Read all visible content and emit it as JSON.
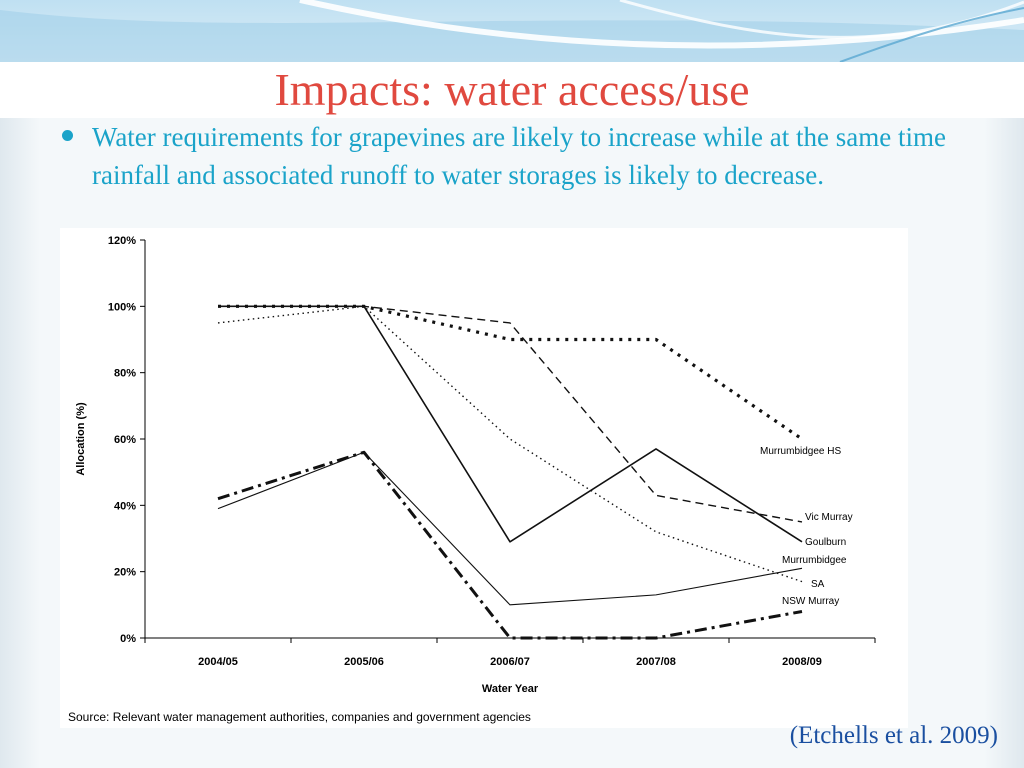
{
  "slide": {
    "title": "Impacts: water access/use",
    "bullet": "Water requirements for grapevines are likely to increase while at the same time rainfall and associated runoff to water storages is likely to decrease.",
    "citation": "(Etchells et al. 2009)",
    "colors": {
      "title": "#e0493f",
      "bullet": "#1aa3c9",
      "citation": "#1a4fa0"
    }
  },
  "chart_data": {
    "type": "line",
    "xlabel": "Water Year",
    "ylabel": "Allocation (%)",
    "categories": [
      "2004/05",
      "2005/06",
      "2006/07",
      "2007/08",
      "2008/09"
    ],
    "y_ticks": [
      "0%",
      "20%",
      "40%",
      "60%",
      "80%",
      "100%",
      "120%"
    ],
    "ylim": [
      0,
      120
    ],
    "source": "Source: Relevant water management authorities, companies and government agencies",
    "series": [
      {
        "name": "Murrumbidgee HS",
        "style": "dotted-bold",
        "values": [
          100,
          100,
          90,
          90,
          60
        ]
      },
      {
        "name": "Vic Murray",
        "style": "dashed",
        "values": [
          100,
          100,
          95,
          43,
          35
        ]
      },
      {
        "name": "Goulburn",
        "style": "solid",
        "values": [
          100,
          100,
          29,
          57,
          29
        ]
      },
      {
        "name": "Murrumbidgee",
        "style": "solid-thin",
        "values": [
          39,
          56,
          10,
          13,
          21
        ]
      },
      {
        "name": "SA",
        "style": "dotted",
        "values": [
          95,
          100,
          60,
          32,
          17
        ]
      },
      {
        "name": "NSW Murray",
        "style": "dash-dot",
        "values": [
          42,
          56,
          0,
          0,
          8
        ]
      }
    ]
  }
}
